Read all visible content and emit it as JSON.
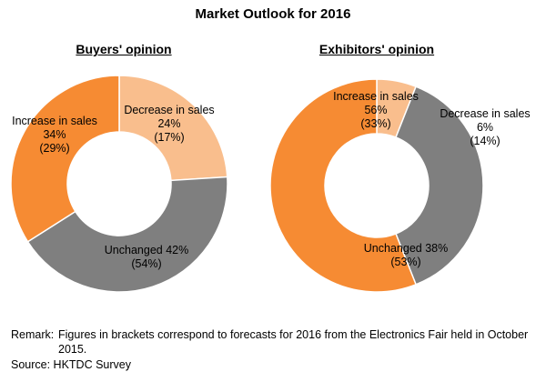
{
  "title": "Market Outlook for 2016",
  "remark_label": "Remark:",
  "remark_text": "Figures in brackets correspond to forecasts for 2016 from the Electronics Fair held in October 2015.",
  "source": "Source: HKTDC Survey",
  "colors": {
    "decrease": "#F9BE8D",
    "unchanged": "#7F7F7F",
    "increase": "#F68B33",
    "stroke": "#FFFFFF"
  },
  "chart_data": [
    {
      "type": "donut",
      "title": "Buyers' opinion",
      "slices": [
        {
          "name": "Decrease in sales",
          "value": 24,
          "previous": 17,
          "color": "#F9BE8D",
          "label_lines": [
            "Decrease in sales",
            "24%",
            "(17%)"
          ]
        },
        {
          "name": "Unchanged",
          "value": 42,
          "previous": 54,
          "color": "#7F7F7F",
          "label_lines": [
            "Unchanged 42%",
            "(54%)"
          ]
        },
        {
          "name": "Increase in sales",
          "value": 34,
          "previous": 29,
          "color": "#F68B33",
          "label_lines": [
            "Increase in sales",
            "34%",
            "(29%)"
          ]
        }
      ]
    },
    {
      "type": "donut",
      "title": "Exhibitors' opinion",
      "slices": [
        {
          "name": "Decrease in sales",
          "value": 6,
          "previous": 14,
          "color": "#F9BE8D",
          "label_lines": [
            "Decrease in sales",
            "6%",
            "(14%)"
          ]
        },
        {
          "name": "Unchanged",
          "value": 38,
          "previous": 53,
          "color": "#7F7F7F",
          "label_lines": [
            "Unchanged 38%",
            "(53%)"
          ]
        },
        {
          "name": "Increase in sales",
          "value": 56,
          "previous": 33,
          "color": "#F68B33",
          "label_lines": [
            "Increase in sales",
            "56%",
            "(33%)"
          ]
        }
      ]
    }
  ]
}
